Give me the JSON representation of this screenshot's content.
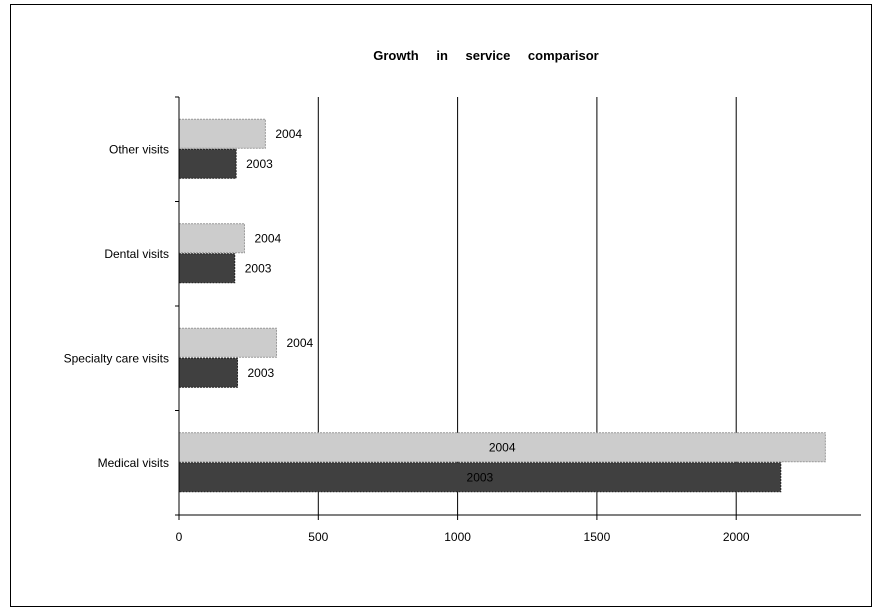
{
  "chart_data": {
    "type": "bar",
    "orientation": "horizontal",
    "title": "Growth in service comparisor",
    "categories": [
      "Medical visits",
      "Specialty care visits",
      "Dental visits",
      "Other visits"
    ],
    "series": [
      {
        "name": "2003",
        "values": [
          2160,
          210,
          200,
          205
        ],
        "color": "#404040",
        "label": "2003"
      },
      {
        "name": "2004",
        "values": [
          2320,
          350,
          235,
          310
        ],
        "color": "#cccccc",
        "label": "2004"
      }
    ],
    "xticks": [
      "0",
      "500",
      "1000",
      "1500",
      "2000"
    ],
    "xlim": [
      0,
      2450
    ],
    "grid": "vertical major lines",
    "legend": "none"
  }
}
